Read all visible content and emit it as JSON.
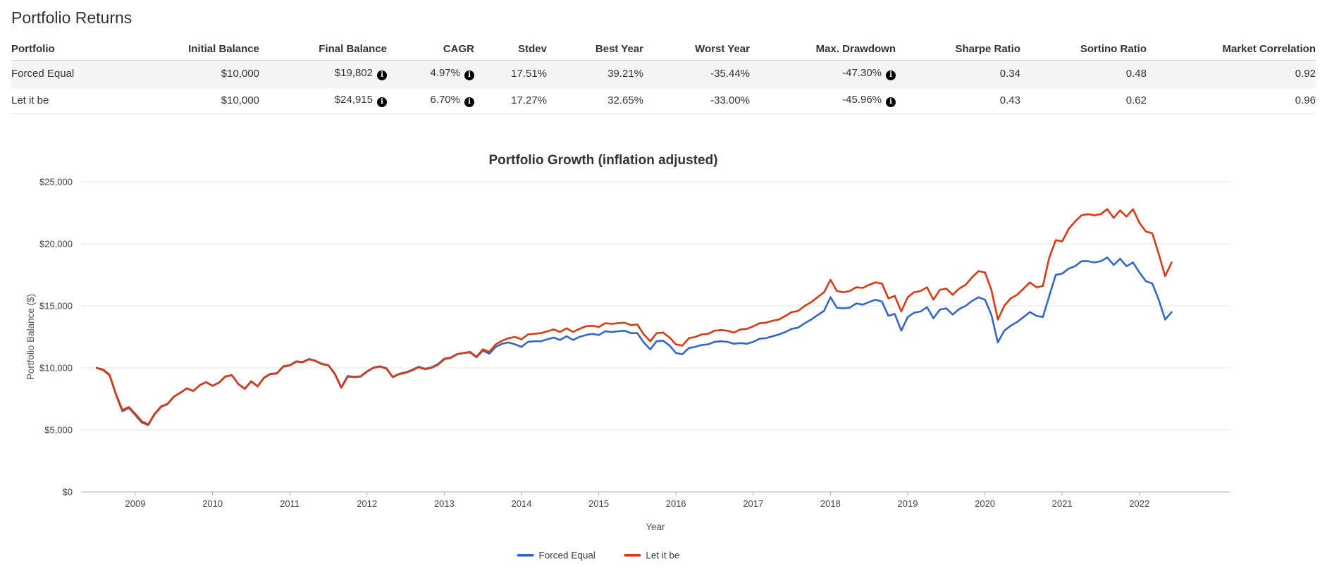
{
  "page": {
    "title": "Portfolio Returns"
  },
  "table": {
    "columns": [
      "Portfolio",
      "Initial Balance",
      "Final Balance",
      "CAGR",
      "Stdev",
      "Best Year",
      "Worst Year",
      "Max. Drawdown",
      "Sharpe Ratio",
      "Sortino Ratio",
      "Market Correlation"
    ],
    "info_icon_columns": [
      2,
      3,
      7
    ],
    "info_icon_glyph": "i",
    "rows": [
      {
        "portfolio": "Forced Equal",
        "cells": [
          "Forced Equal",
          "$10,000",
          "$19,802",
          "4.97%",
          "17.51%",
          "39.21%",
          "-35.44%",
          "-47.30%",
          "0.34",
          "0.48",
          "0.92"
        ]
      },
      {
        "portfolio": "Let it be",
        "cells": [
          "Let it be",
          "$10,000",
          "$24,915",
          "6.70%",
          "17.27%",
          "32.65%",
          "-33.00%",
          "-45.96%",
          "0.43",
          "0.62",
          "0.96"
        ]
      }
    ]
  },
  "chart_data": {
    "type": "line",
    "title": "Portfolio Growth (inflation adjusted)",
    "xlabel": "Year",
    "ylabel": "Portfolio Balance ($)",
    "grid": true,
    "legend_position": "bottom",
    "x_start_year": 2008.5,
    "x_step_months": 1,
    "x_ticks": [
      2009,
      2010,
      2011,
      2012,
      2013,
      2014,
      2015,
      2016,
      2017,
      2018,
      2019,
      2020,
      2021,
      2022
    ],
    "y_ticks": [
      0,
      5000,
      10000,
      15000,
      20000,
      25000
    ],
    "y_tick_labels": [
      "$0",
      "$5,000",
      "$10,000",
      "$15,000",
      "$20,000",
      "$25,000"
    ],
    "ylim": [
      0,
      25000
    ],
    "axis_color": "#b1b1b1",
    "grid_color": "#e6e6e6",
    "series": [
      {
        "name": "Forced Equal",
        "color": "#3366cc",
        "values": [
          10000,
          9820,
          9400,
          7820,
          6500,
          6780,
          6200,
          5600,
          5390,
          6250,
          6850,
          7080,
          7680,
          8000,
          8350,
          8130,
          8600,
          8850,
          8560,
          8820,
          9320,
          9420,
          8720,
          8330,
          8930,
          8530,
          9230,
          9530,
          9580,
          10130,
          10230,
          10530,
          10480,
          10730,
          10580,
          10330,
          10230,
          9550,
          8450,
          9350,
          9280,
          9330,
          9730,
          10030,
          10130,
          9980,
          9280,
          9530,
          9640,
          9840,
          10090,
          9940,
          10040,
          10300,
          10750,
          10830,
          11120,
          11200,
          11250,
          10850,
          11400,
          11150,
          11700,
          11950,
          12050,
          11900,
          11700,
          12100,
          12150,
          12150,
          12300,
          12450,
          12250,
          12550,
          12250,
          12500,
          12650,
          12750,
          12650,
          12950,
          12900,
          12950,
          13000,
          12800,
          12800,
          12050,
          11500,
          12150,
          12200,
          11800,
          11200,
          11100,
          11600,
          11700,
          11850,
          11900,
          12100,
          12150,
          12100,
          11950,
          12000,
          11950,
          12100,
          12350,
          12400,
          12550,
          12700,
          12900,
          13150,
          13250,
          13600,
          13900,
          14250,
          14600,
          15700,
          14850,
          14800,
          14850,
          15200,
          15100,
          15300,
          15500,
          15350,
          14200,
          14350,
          13000,
          14100,
          14450,
          14550,
          14900,
          14000,
          14700,
          14800,
          14300,
          14750,
          15000,
          15400,
          15700,
          15500,
          14300,
          12050,
          13000,
          13400,
          13700,
          14100,
          14500,
          14200,
          14100,
          15800,
          17500,
          17600,
          18000,
          18200,
          18600,
          18600,
          18500,
          18600,
          18900,
          18300,
          18800,
          18200,
          18500,
          17700,
          17000,
          16800,
          15500,
          13900,
          14500
        ]
      },
      {
        "name": "Let it be",
        "color": "#dc3912",
        "values": [
          10000,
          9870,
          9450,
          7900,
          6600,
          6850,
          6300,
          5700,
          5450,
          6300,
          6900,
          7100,
          7700,
          8000,
          8350,
          8150,
          8600,
          8850,
          8550,
          8800,
          9300,
          9400,
          8700,
          8300,
          8900,
          8500,
          9200,
          9500,
          9550,
          10100,
          10200,
          10500,
          10450,
          10700,
          10550,
          10300,
          10200,
          9500,
          8400,
          9300,
          9250,
          9300,
          9700,
          10000,
          10100,
          9950,
          9250,
          9500,
          9600,
          9800,
          10050,
          9900,
          10000,
          10250,
          10700,
          10800,
          11100,
          11200,
          11300,
          10900,
          11500,
          11300,
          11900,
          12200,
          12400,
          12500,
          12300,
          12700,
          12750,
          12800,
          12950,
          13100,
          12900,
          13200,
          12900,
          13150,
          13350,
          13400,
          13300,
          13600,
          13550,
          13600,
          13650,
          13450,
          13500,
          12700,
          12150,
          12800,
          12850,
          12450,
          11900,
          11800,
          12400,
          12500,
          12700,
          12750,
          13000,
          13050,
          13000,
          12850,
          13100,
          13150,
          13350,
          13600,
          13650,
          13800,
          13900,
          14200,
          14500,
          14600,
          15000,
          15300,
          15700,
          16100,
          17100,
          16200,
          16100,
          16200,
          16500,
          16450,
          16700,
          16900,
          16800,
          15600,
          15800,
          14550,
          15700,
          16100,
          16200,
          16500,
          15500,
          16300,
          16400,
          15900,
          16400,
          16700,
          17300,
          17800,
          17700,
          16300,
          13900,
          15000,
          15600,
          15900,
          16400,
          16900,
          16500,
          16600,
          18900,
          20300,
          20200,
          21200,
          21800,
          22300,
          22400,
          22300,
          22400,
          22800,
          22100,
          22700,
          22200,
          22800,
          21700,
          21000,
          20850,
          19200,
          17400,
          18500
        ]
      }
    ]
  }
}
